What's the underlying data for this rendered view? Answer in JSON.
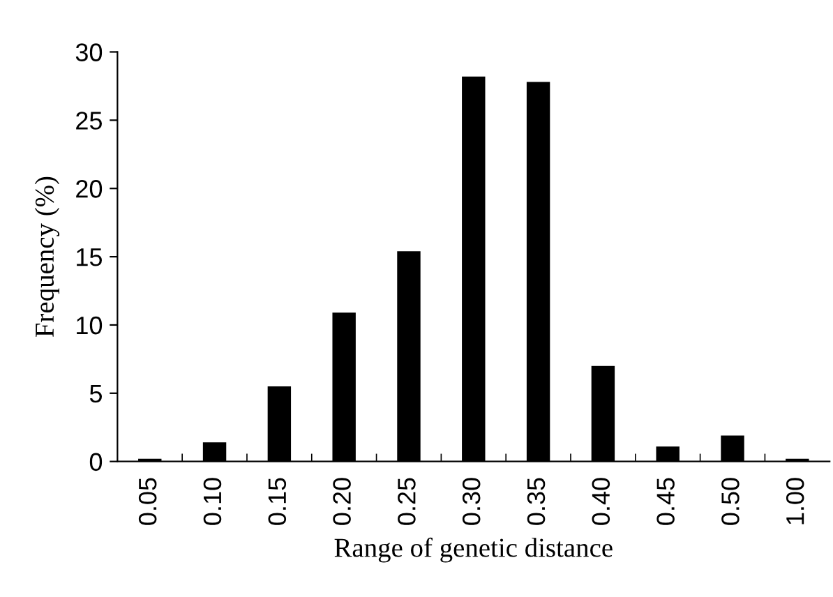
{
  "chart_data": {
    "type": "bar",
    "xlabel": "Range of genetic distance",
    "ylabel": "Frequency (%)",
    "categories": [
      "0.05",
      "0.10",
      "0.15",
      "0.20",
      "0.25",
      "0.30",
      "0.35",
      "0.40",
      "0.45",
      "0.50",
      "1.00"
    ],
    "values": [
      0.2,
      1.4,
      5.5,
      10.9,
      15.4,
      28.2,
      27.8,
      7.0,
      1.1,
      1.9,
      0.2
    ],
    "color": "#000000",
    "ylim": [
      0,
      30
    ],
    "yticks": [
      0,
      5,
      10,
      15,
      20,
      25,
      30
    ],
    "grid": false,
    "legend": false
  }
}
